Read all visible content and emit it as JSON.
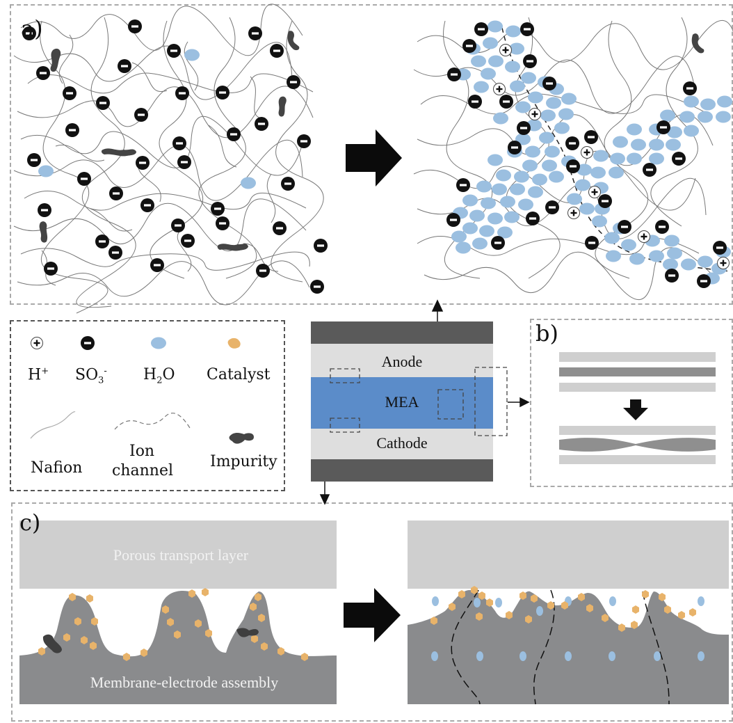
{
  "panel_labels": {
    "a": "a)",
    "b": "b)",
    "c": "c)"
  },
  "legend": {
    "h_plus": {
      "base": "H",
      "sup": "+"
    },
    "so3": {
      "base": "SO",
      "sub": "3",
      "sup": "-"
    },
    "h2o": {
      "base1": "H",
      "sub": "2",
      "base2": "O"
    },
    "catalyst": "Catalyst",
    "nafion": "Nafion",
    "ion_channel_1": "Ion",
    "ion_channel_2": "channel",
    "impurity": "Impurity",
    "plus_symbol": "+",
    "minus_symbol": "−"
  },
  "cell": {
    "anode": "Anode",
    "mea": "MEA",
    "cathode": "Cathode"
  },
  "panel_c": {
    "ptl": "Porous transport layer",
    "mea_full": "Membrane-electrode assembly"
  },
  "colors": {
    "water": "#9bbfe0",
    "catalyst": "#e8b36a",
    "mea_blue": "#5b8cc9",
    "dark_plate": "#5a5a5a",
    "light_layer": "#dedede",
    "membrane_gray": "#8a8b8d",
    "ptl_gray": "#cfcfcf"
  }
}
